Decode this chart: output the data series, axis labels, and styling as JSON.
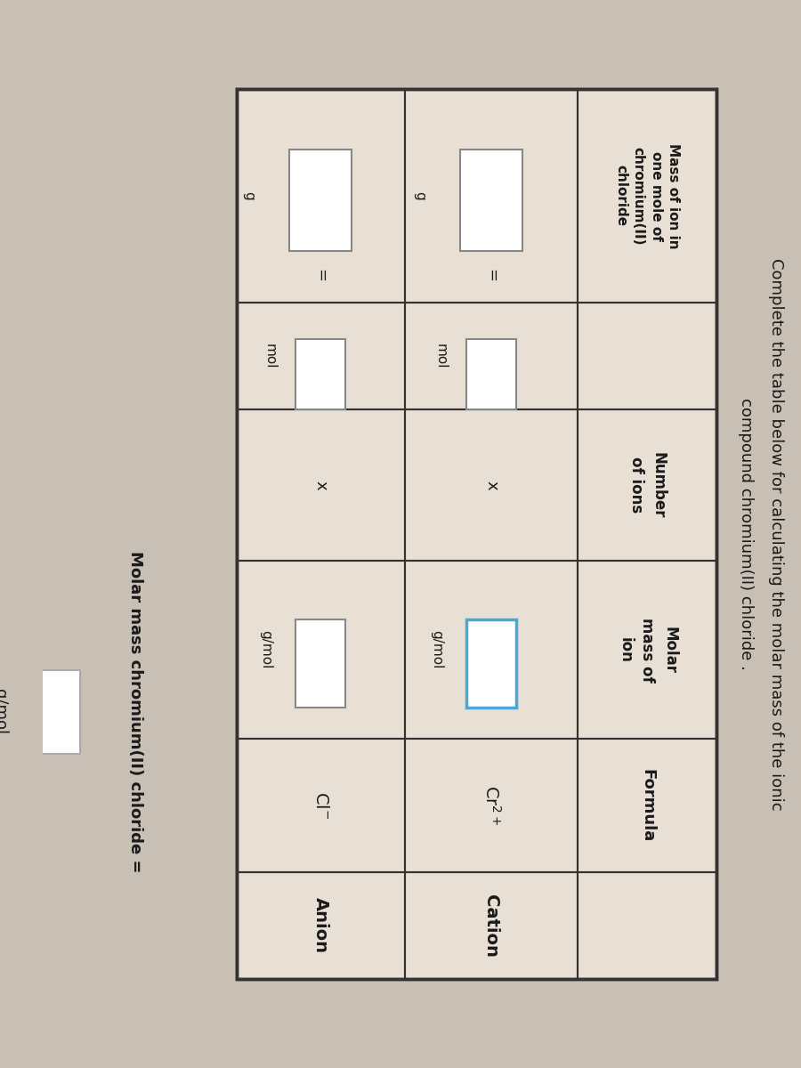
{
  "title_line1": "Complete the table below for calculating the molar mass of the ionic",
  "title_line2": "compound chromium(II) chloride .",
  "bg_color": "#c8bfb5",
  "table_bg": "#e8e0d4",
  "text_color_dark": "#1a1a1a",
  "border_color": "#333333",
  "header_col1": "Formula",
  "header_col2": "Molar\nmass of\nion",
  "header_col3": "Number\nof ions",
  "header_col4": "Mass of ion in\none mole of\nchromium(II)\nchloride",
  "row1_label": "Cation",
  "row1_formula_base": "Cr",
  "row1_formula_sup": "2+",
  "row1_molar_unit": "g/mol",
  "row1_x": "x",
  "row1_num_unit": "mol",
  "row1_eq": "=",
  "row1_mass_unit": "g",
  "row2_label": "Anion",
  "row2_formula_base": "Cl",
  "row2_formula_sup": "-",
  "row2_molar_unit": "g/mol",
  "row2_x": "x",
  "row2_num_unit": "mol",
  "row2_eq": "=",
  "row2_mass_unit": "g",
  "footer_label": "Molar mass chromium(II) chloride =",
  "footer_unit": "g/mol",
  "cation_box_border": "#4aa8d8",
  "anion_box_border": "#888888",
  "footer_box_border": "#aaaaaa",
  "input_box_fill": "#ffffff"
}
